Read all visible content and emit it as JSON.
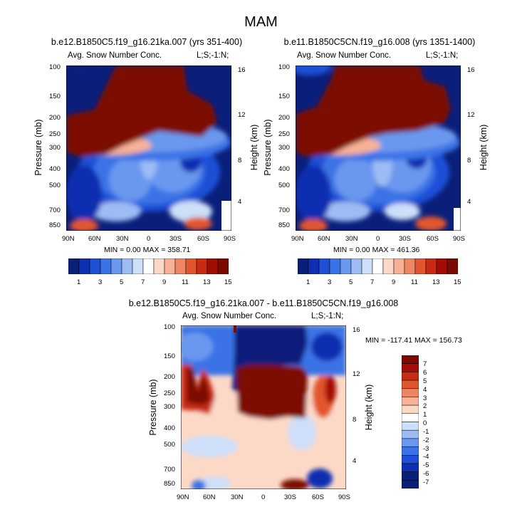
{
  "figure": {
    "title": "MAM",
    "palette_blue_to_red": [
      "#0a1f7a",
      "#0d2fb0",
      "#1f4fd6",
      "#3a73e6",
      "#6a98ee",
      "#9dbcf4",
      "#cddff9",
      "#ffffff",
      "#fcd9c7",
      "#f6b196",
      "#ef8563",
      "#e2562f",
      "#c92a12",
      "#a40d05",
      "#7b0a00"
    ]
  },
  "chart_data": [
    {
      "type": "heatmap",
      "title": "b.e12.B1850C5.f19_g16.21ka.007 (yrs 351-400)",
      "variable_label": "Avg. Snow Number Conc.",
      "level_label": "L;S;-1:N;",
      "xlabel": "",
      "ylabel": "Pressure (mb)",
      "y2label": "Height (km)",
      "x_ticks": [
        "90N",
        "60N",
        "30N",
        "0",
        "30S",
        "60S",
        "90S"
      ],
      "y_ticks": [
        "100",
        "150",
        "200",
        "250",
        "300",
        "400",
        "500",
        "700",
        "850"
      ],
      "y2_ticks": [
        "16",
        "12",
        "8",
        "4"
      ],
      "min": "0.00",
      "max": "358.71",
      "stats_text": "MIN =   0.00   MAX = 358.71"
    },
    {
      "type": "heatmap",
      "title": "b.e11.B1850C5CN.f19_g16.008 (yrs 1351-1400)",
      "variable_label": "Avg. Snow Number Conc.",
      "level_label": "L;S;-1:N;",
      "xlabel": "",
      "ylabel": "Pressure (mb)",
      "y2label": "Height (km)",
      "x_ticks": [
        "90N",
        "60N",
        "30N",
        "0",
        "30S",
        "60S",
        "90S"
      ],
      "y_ticks": [
        "100",
        "150",
        "200",
        "250",
        "300",
        "400",
        "500",
        "700",
        "850"
      ],
      "y2_ticks": [
        "16",
        "12",
        "8",
        "4"
      ],
      "min": "0.00",
      "max": "461.36",
      "stats_text": "MIN =   0.00   MAX = 461.36"
    },
    {
      "type": "heatmap",
      "title": "b.e12.B1850C5.f19_g16.21ka.007 - b.e11.B1850C5CN.f19_g16.008",
      "variable_label": "Avg. Snow Number Conc.",
      "level_label": "L;S;-1:N;",
      "xlabel": "",
      "ylabel": "Pressure (mb)",
      "y2label": "Height (km)",
      "x_ticks": [
        "90N",
        "60N",
        "30N",
        "0",
        "30S",
        "60S",
        "90S"
      ],
      "y_ticks": [
        "100",
        "150",
        "200",
        "250",
        "300",
        "400",
        "500",
        "700",
        "850"
      ],
      "y2_ticks": [
        "16",
        "12",
        "8",
        "4"
      ],
      "min": "-117.41",
      "max": "156.73",
      "stats_text": "MIN = -117.41   MAX = 156.73"
    }
  ],
  "colorbars": {
    "shared": {
      "orientation": "horizontal",
      "tick_labels": [
        "1",
        "3",
        "5",
        "7",
        "9",
        "11",
        "13",
        "15"
      ],
      "levels": [
        1,
        2,
        3,
        4,
        5,
        6,
        7,
        8,
        9,
        10,
        11,
        12,
        13,
        14,
        15
      ]
    },
    "difference": {
      "orientation": "vertical",
      "tick_labels": [
        "7",
        "6",
        "5",
        "4",
        "3",
        "2",
        "1",
        "0",
        "-1",
        "-2",
        "-3",
        "-4",
        "-5",
        "-6",
        "-7"
      ],
      "levels": [
        7,
        6,
        5,
        4,
        3,
        2,
        1,
        0,
        -1,
        -2,
        -3,
        -4,
        -5,
        -6,
        -7
      ]
    }
  }
}
